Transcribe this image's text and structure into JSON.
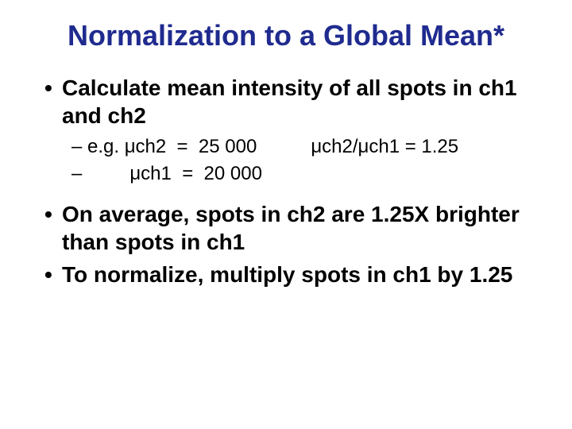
{
  "title": "Normalization to a Global Mean*",
  "title_color": "#1f2b8f",
  "title_fontsize": 36,
  "bullet1_fontsize": 28,
  "bullet2_fontsize": 24,
  "text_color": "#000000",
  "bullets": {
    "b1": "Calculate mean intensity of all spots in ch1 and ch2",
    "sub1_left": "e.g. μch2  =  25 000",
    "sub1_right": "μch2/μch1 = 1.25",
    "sub2": "        μch1  =  20 000",
    "b2": "On average, spots in ch2 are 1.25X brighter than spots in ch1",
    "b3": "To normalize, multiply spots in ch1 by 1.25"
  }
}
